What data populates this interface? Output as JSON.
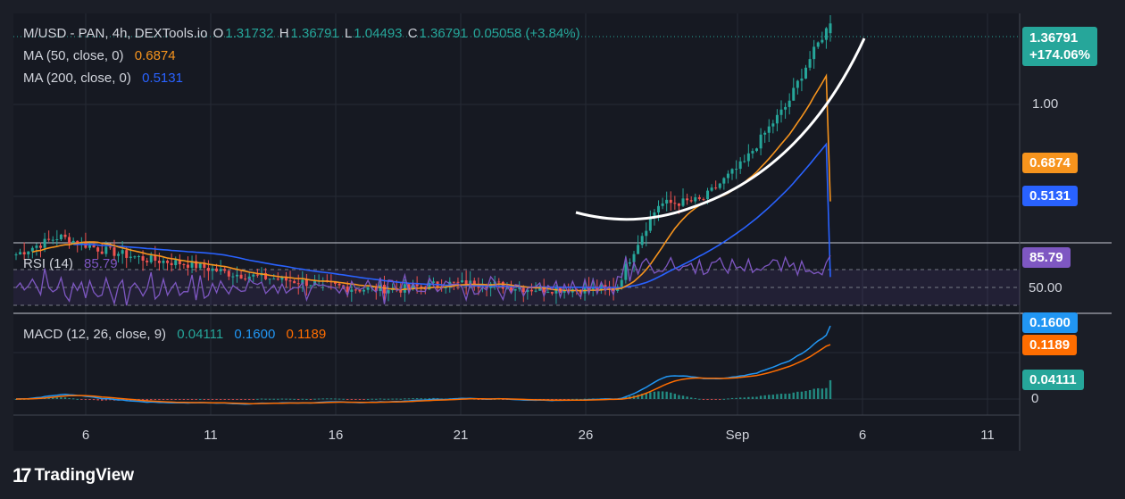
{
  "price_pane": {
    "symbol": "M/USD - PAN, 4h, DEXTools.io",
    "open_label": "O",
    "open": "1.31732",
    "high_label": "H",
    "high": "1.36791",
    "low_label": "L",
    "low": "1.04493",
    "close_label": "C",
    "close": "1.36791",
    "change": "0.05058 (+3.84%)",
    "ma50_label": "MA (50, close, 0)",
    "ma50_value": "0.6874",
    "ma200_label": "MA (200, close, 0)",
    "ma200_value": "0.5131"
  },
  "price_tags": {
    "last_price": "1.36791",
    "last_pct": "+174.06%",
    "ma50": "0.6874",
    "ma200": "0.5131",
    "level_1": "1.00"
  },
  "rsi_pane": {
    "label": "RSI (14)",
    "value": "85.79",
    "tag": "85.79",
    "level_label": "50.00"
  },
  "macd_pane": {
    "label": "MACD (12, 26, close, 9)",
    "histogram": "0.04111",
    "macd": "0.1600",
    "signal": "0.1189",
    "tag_macd": "0.1600",
    "tag_signal": "0.1189",
    "tag_hist": "0.04111",
    "zero_label": "0"
  },
  "x_axis": {
    "ticks": [
      "6",
      "11",
      "16",
      "21",
      "26",
      "Sep",
      "6",
      "11"
    ]
  },
  "branding": {
    "name": "TradingView"
  },
  "colors": {
    "background": "#1b1e27",
    "up": "#26a69a",
    "down": "#ef5350",
    "ma50": "#f7941d",
    "ma200": "#2962ff",
    "rsi": "#7e57c2",
    "macd": "#2196f3",
    "signal": "#ff6d00",
    "curve": "#ffffff"
  },
  "chart_data": {
    "type": "candlestick",
    "title": "M/USD - PAN, 4h, DEXTools.io",
    "x_tick_labels": [
      "6",
      "11",
      "16",
      "21",
      "26",
      "Sep",
      "6",
      "11"
    ],
    "price_axis_labels": [
      "1.00"
    ],
    "last_close": 1.36791,
    "ohlc_last": {
      "open": 1.31732,
      "high": 1.36791,
      "low": 1.04493,
      "close": 1.36791
    },
    "price_trend": [
      0.56,
      0.6,
      0.57,
      0.55,
      0.54,
      0.52,
      0.51,
      0.5,
      0.49,
      0.49,
      0.5,
      0.5,
      0.49,
      0.49,
      0.49,
      0.68,
      0.69,
      0.8,
      1.0,
      1.37
    ],
    "ma50_last": 0.6874,
    "ma200_last": 0.5131,
    "rsi": {
      "period": 14,
      "last": 85.79,
      "levels": [
        30,
        50,
        70
      ]
    },
    "macd": {
      "fast": 12,
      "slow": 26,
      "signal": 9,
      "macd": 0.16,
      "signal_value": 0.1189,
      "histogram": 0.04111
    }
  }
}
